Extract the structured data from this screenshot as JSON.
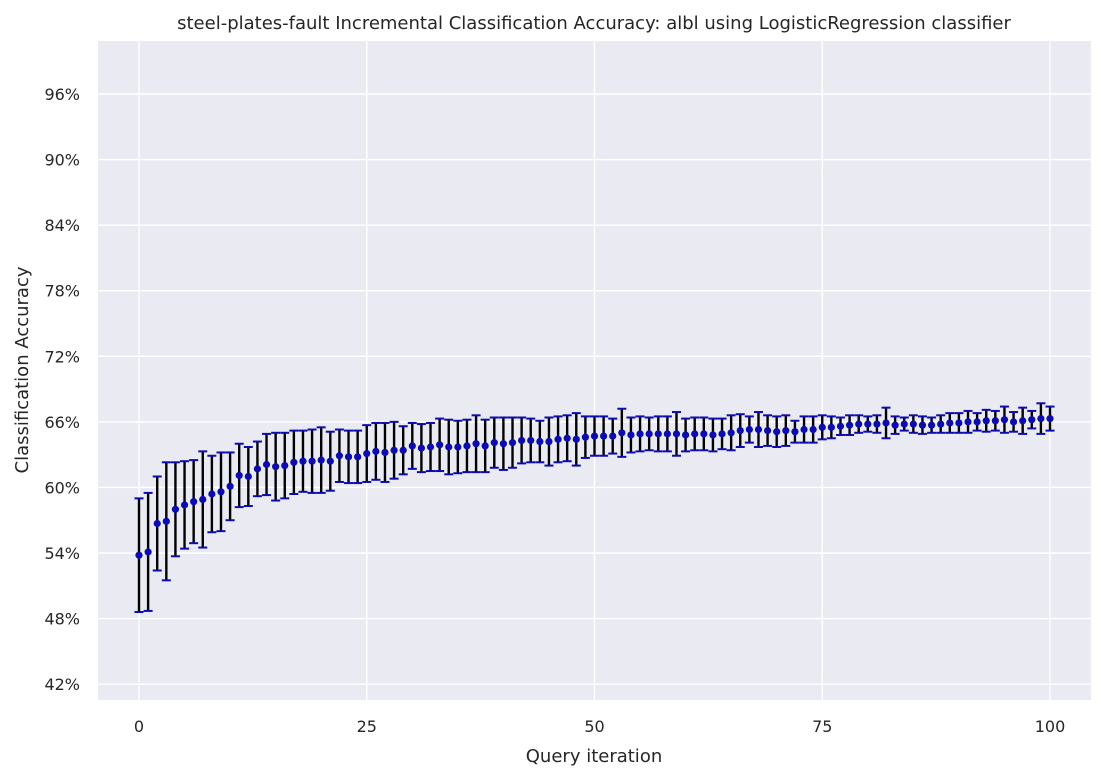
{
  "chart_data": {
    "type": "line",
    "title": "steel-plates-fault Incremental Classification Accuracy: albl using LogisticRegression classifier",
    "xlabel": "Query iteration",
    "ylabel": "Classification Accuracy",
    "xlim": [
      -4.5,
      104.5
    ],
    "ylim": [
      0.4055,
      1.0085
    ],
    "xticks": [
      0,
      25,
      50,
      75,
      100
    ],
    "xtick_labels": [
      "0",
      "25",
      "50",
      "75",
      "100"
    ],
    "yticks": [
      0.42,
      0.48,
      0.54,
      0.6,
      0.66,
      0.72,
      0.78,
      0.84,
      0.9,
      0.96
    ],
    "ytick_labels": [
      "42%",
      "48%",
      "54%",
      "60%",
      "66%",
      "72%",
      "78%",
      "84%",
      "90%",
      "96%"
    ],
    "grid": true,
    "colors": {
      "plot_background": "#eaeaf2",
      "grid": "#ffffff",
      "marker": "#0b0bb0",
      "errorbar": "#000000",
      "cap": "#0b0bb0"
    },
    "series": [
      {
        "x": [
          0,
          1,
          2,
          3,
          4,
          5,
          6,
          7,
          8,
          9,
          10,
          11,
          12,
          13,
          14,
          15,
          16,
          17,
          18,
          19,
          20,
          21,
          22,
          23,
          24,
          25,
          26,
          27,
          28,
          29,
          30,
          31,
          32,
          33,
          34,
          35,
          36,
          37,
          38,
          39,
          40,
          41,
          42,
          43,
          44,
          45,
          46,
          47,
          48,
          49,
          50,
          51,
          52,
          53,
          54,
          55,
          56,
          57,
          58,
          59,
          60,
          61,
          62,
          63,
          64,
          65,
          66,
          67,
          68,
          69,
          70,
          71,
          72,
          73,
          74,
          75,
          76,
          77,
          78,
          79,
          80,
          81,
          82,
          83,
          84,
          85,
          86,
          87,
          88,
          89,
          90,
          91,
          92,
          93,
          94,
          95,
          96,
          97,
          98,
          99,
          100
        ],
        "y": [
          0.538,
          0.541,
          0.567,
          0.569,
          0.58,
          0.584,
          0.587,
          0.589,
          0.594,
          0.596,
          0.601,
          0.611,
          0.61,
          0.617,
          0.621,
          0.619,
          0.62,
          0.623,
          0.624,
          0.624,
          0.625,
          0.624,
          0.629,
          0.628,
          0.628,
          0.631,
          0.633,
          0.632,
          0.634,
          0.634,
          0.638,
          0.636,
          0.637,
          0.639,
          0.637,
          0.637,
          0.638,
          0.64,
          0.638,
          0.641,
          0.64,
          0.641,
          0.643,
          0.643,
          0.642,
          0.642,
          0.644,
          0.645,
          0.644,
          0.646,
          0.647,
          0.647,
          0.647,
          0.65,
          0.648,
          0.649,
          0.649,
          0.649,
          0.649,
          0.649,
          0.648,
          0.649,
          0.649,
          0.648,
          0.649,
          0.65,
          0.652,
          0.653,
          0.653,
          0.652,
          0.651,
          0.652,
          0.651,
          0.653,
          0.653,
          0.655,
          0.655,
          0.656,
          0.657,
          0.658,
          0.658,
          0.658,
          0.659,
          0.657,
          0.658,
          0.658,
          0.657,
          0.657,
          0.658,
          0.659,
          0.659,
          0.66,
          0.66,
          0.661,
          0.661,
          0.662,
          0.66,
          0.661,
          0.662,
          0.663,
          0.663
        ],
        "err": [
          0.052,
          0.054,
          0.043,
          0.054,
          0.043,
          0.04,
          0.038,
          0.044,
          0.035,
          0.036,
          0.031,
          0.029,
          0.027,
          0.025,
          0.028,
          0.031,
          0.03,
          0.029,
          0.028,
          0.029,
          0.03,
          0.027,
          0.024,
          0.024,
          0.024,
          0.026,
          0.026,
          0.027,
          0.026,
          0.022,
          0.021,
          0.022,
          0.022,
          0.024,
          0.025,
          0.024,
          0.024,
          0.026,
          0.024,
          0.023,
          0.024,
          0.023,
          0.021,
          0.02,
          0.019,
          0.022,
          0.021,
          0.021,
          0.024,
          0.019,
          0.018,
          0.018,
          0.016,
          0.022,
          0.016,
          0.016,
          0.015,
          0.016,
          0.016,
          0.02,
          0.015,
          0.015,
          0.015,
          0.015,
          0.014,
          0.016,
          0.015,
          0.012,
          0.016,
          0.014,
          0.014,
          0.014,
          0.01,
          0.012,
          0.012,
          0.011,
          0.01,
          0.008,
          0.009,
          0.008,
          0.007,
          0.008,
          0.014,
          0.008,
          0.006,
          0.008,
          0.008,
          0.007,
          0.008,
          0.009,
          0.009,
          0.01,
          0.008,
          0.01,
          0.009,
          0.012,
          0.009,
          0.012,
          0.008,
          0.014,
          0.011
        ]
      }
    ]
  }
}
